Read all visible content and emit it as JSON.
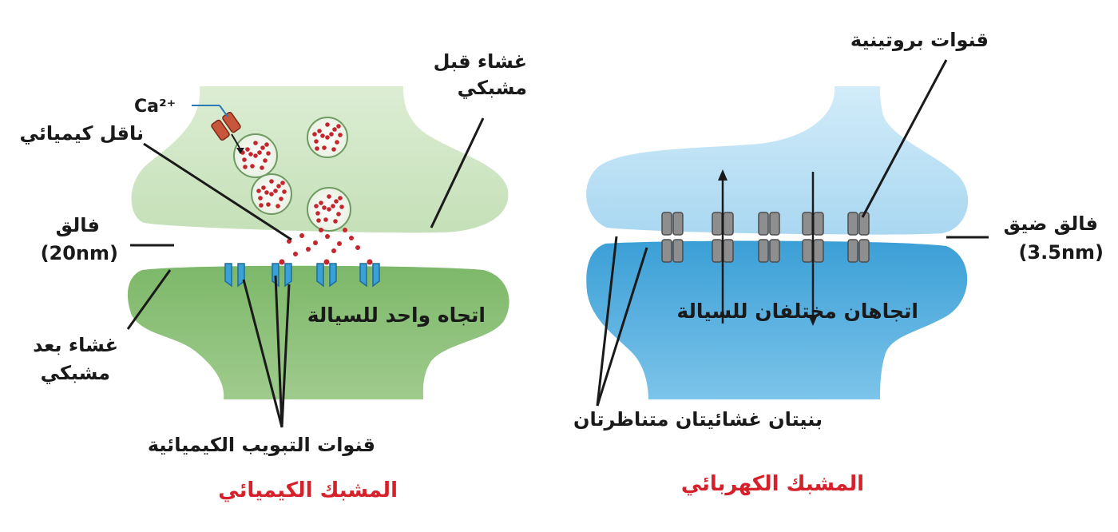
{
  "chemical": {
    "title": "المشبك الكيميائي",
    "presynaptic_membrane": [
      "غشاء قبل",
      "مشبكي"
    ],
    "neurotransmitter": "ناقل كيميائي",
    "calcium": "Ca²⁺",
    "cleft": [
      "فالق",
      "(20nm)"
    ],
    "postsynaptic_membrane": [
      "غشاء بعد",
      "مشبكي"
    ],
    "flow_direction": "اتجاه واحد للسيالة",
    "gated_channels": "قنوات التبويب الكيميائية"
  },
  "electrical": {
    "title": "المشبك الكهربائي",
    "protein_channels": "قنوات بروتينية",
    "narrow_cleft": [
      "فالق ضيق",
      "(3.5nm)"
    ],
    "flow_direction": "اتجاهان مختلفان للسيالة",
    "symmetric_membranes": "بنيتان غشائيتان متناظرتان"
  },
  "colors": {
    "chemical_upper": "#cfe6c4",
    "chemical_lower": "#6faa5a",
    "electrical_upper": "#b4dcf3",
    "electrical_lower": "#43a7dc",
    "title_red": "#d6202a",
    "vesicle_dot": "#c4262e",
    "gated_channel": "#3aa0d8",
    "gap_junction": "#8e8e8e"
  }
}
